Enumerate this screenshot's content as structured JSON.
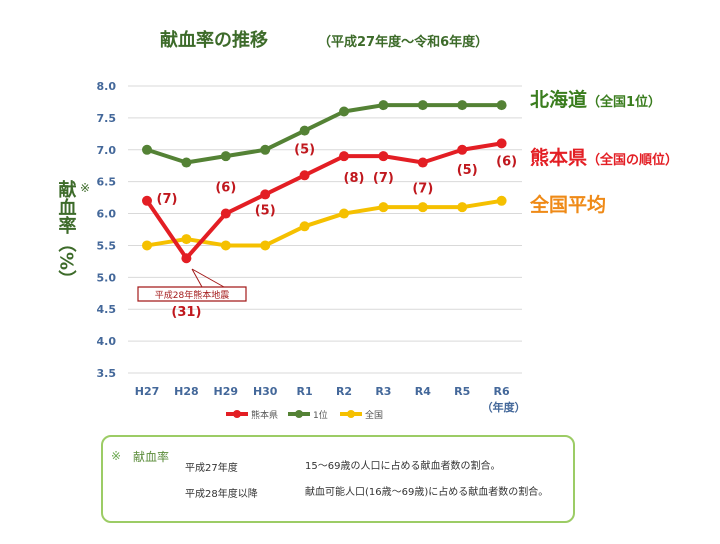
{
  "chart_data": {
    "type": "line",
    "title": "献血率の推移",
    "subtitle": "（平成27年度～令和6年度）",
    "ylabel": "献血率（%）",
    "ylabel_mark": "※",
    "xunit": "（年度）",
    "categories": [
      "H27",
      "H28",
      "H29",
      "H30",
      "R1",
      "R2",
      "R3",
      "R4",
      "R5",
      "R6"
    ],
    "ylim": [
      3.5,
      8.0
    ],
    "yticks": [
      "3.5",
      "4.0",
      "4.5",
      "5.0",
      "5.5",
      "6.0",
      "6.5",
      "7.0",
      "7.5",
      "8.0"
    ],
    "grid": true,
    "legend_position": "bottom",
    "series": [
      {
        "name": "熊本県",
        "color": "#e31e24",
        "values": [
          6.2,
          5.3,
          6.0,
          6.3,
          6.6,
          6.9,
          6.9,
          6.8,
          7.0,
          7.1
        ],
        "labels": [
          "(7)",
          "(31)",
          "(6)",
          "(5)",
          "(5)",
          "(8)",
          "(7)",
          "(7)",
          "(5)",
          "(6)"
        ]
      },
      {
        "name": "1位",
        "color": "#548235",
        "values": [
          7.0,
          6.8,
          6.9,
          7.0,
          7.3,
          7.6,
          7.7,
          7.7,
          7.7,
          7.7
        ]
      },
      {
        "name": "全国",
        "color": "#f5c000",
        "values": [
          5.5,
          5.6,
          5.5,
          5.5,
          5.8,
          6.0,
          6.1,
          6.1,
          6.1,
          6.2
        ]
      }
    ],
    "annotation": "平成28年熊本地震",
    "side_labels": [
      {
        "main": "北海道",
        "sub": "（全国1位）",
        "color": "#3a7d1e"
      },
      {
        "main": "熊本県",
        "sub": "（全国の順位）",
        "color": "#e31e24"
      },
      {
        "main": "全国平均",
        "sub": "",
        "color": "#ef8a17"
      }
    ]
  },
  "note": {
    "mark": "※",
    "title": "献血率",
    "rows": [
      {
        "period": "平成27年度",
        "definition": "15～69歳の人口に占める献血者数の割合。"
      },
      {
        "period": "平成28年度以降",
        "definition": "献血可能人口(16歳～69歳)に占める献血者数の割合。"
      }
    ]
  }
}
